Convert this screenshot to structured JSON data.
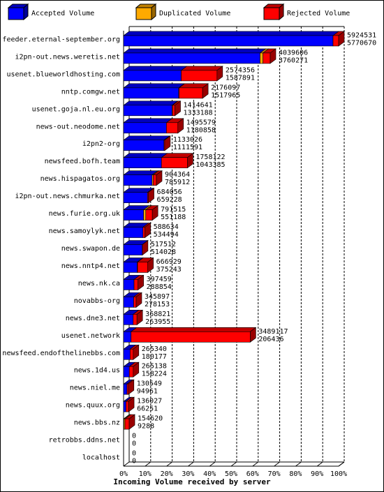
{
  "chart_data": {
    "type": "bar3d",
    "orientation": "horizontal",
    "stacked": true,
    "x_label": "Incoming Volume received by server",
    "categories": [
      "feeder.eternal-september.org",
      "i2pn-out.news.weretis.net",
      "usenet.blueworldhosting.com",
      "nntp.comgw.net",
      "usenet.goja.nl.eu.org",
      "news-out.neodome.net",
      "i2pn2-org",
      "newsfeed.bofh.team",
      "news.hispagatos.org",
      "i2pn-out.news.chmurka.net",
      "news.furie.org.uk",
      "news.samoylyk.net",
      "news.swapon.de",
      "news.nntp4.net",
      "news.nk.ca",
      "novabbs-org",
      "news.dne3.net",
      "usenet.network",
      "newsfeed.endofthelinebbs.com",
      "news.1d4.us",
      "news.niel.me",
      "news.quux.org",
      "news.bbs.nz",
      "retrobbs.ddns.net",
      "localhost"
    ],
    "totals": [
      5924531,
      4039606,
      2574356,
      2176097,
      1414641,
      1495579,
      1133026,
      1758122,
      904364,
      684056,
      791515,
      588634,
      517512,
      666929,
      397459,
      345897,
      368821,
      3489117,
      265340,
      265138,
      130549,
      136027,
      154620,
      0,
      0
    ],
    "series": [
      {
        "name": "Accepted Volume",
        "color": "#0000ff",
        "values": [
          5770670,
          3760271,
          1587891,
          1517965,
          1333188,
          1180858,
          1111591,
          1043385,
          785912,
          659228,
          551188,
          534494,
          514028,
          375243,
          288854,
          278153,
          263955,
          206436,
          180177,
          158224,
          94961,
          66251,
          9288,
          0,
          0
        ]
      },
      {
        "name": "Duplicated Volume",
        "color": "#ffaa00",
        "values": [
          0,
          80000,
          0,
          10000,
          15000,
          0,
          0,
          0,
          30000,
          0,
          60000,
          0,
          0,
          10000,
          0,
          0,
          0,
          0,
          0,
          0,
          0,
          0,
          30000,
          0,
          0
        ]
      },
      {
        "name": "Rejected Volume",
        "color": "#ff0000",
        "values": [
          153861,
          199335,
          986465,
          648132,
          66453,
          314721,
          21435,
          714737,
          88452,
          24828,
          180327,
          54140,
          3484,
          281686,
          108605,
          67744,
          104866,
          3282681,
          85163,
          106914,
          35588,
          69776,
          115332,
          0,
          0
        ]
      }
    ],
    "xlim": [
      0,
      5924531
    ],
    "xticks": [
      {
        "value": 0,
        "label": "0%"
      },
      {
        "value": 592453.1,
        "label": "10%"
      },
      {
        "value": 1184906.2,
        "label": "20%"
      },
      {
        "value": 1777359.3,
        "label": "30%"
      },
      {
        "value": 2369812.4,
        "label": "40%"
      },
      {
        "value": 2962265.5,
        "label": "50%"
      },
      {
        "value": 3554718.6,
        "label": "60%"
      },
      {
        "value": 4147171.7,
        "label": "70%"
      },
      {
        "value": 4739624.8,
        "label": "80%"
      },
      {
        "value": 5332077.9,
        "label": "90%"
      },
      {
        "value": 5924531,
        "label": "100%"
      }
    ],
    "grid": true
  }
}
